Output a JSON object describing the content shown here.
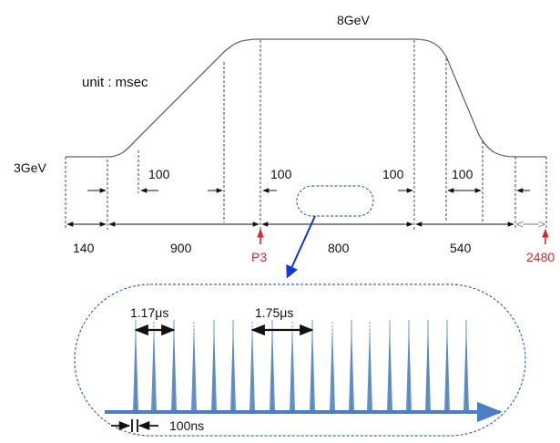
{
  "labels": {
    "energy_top": "8GeV",
    "energy_bottom": "3GeV",
    "unit": "unit : msec",
    "ramp_up": "100",
    "ramp_down": "100",
    "flat_start": "100",
    "flat_end": "100",
    "ramp_down_tail": "100",
    "seg1": "140",
    "seg2": "900",
    "seg3": "800",
    "seg4": "540",
    "marker_p3": "P3",
    "marker_end": "2480",
    "spacing1": "1.17μs",
    "spacing2": "1.75μs",
    "pulse_width": "100ns"
  },
  "colors": {
    "curve": "#666666",
    "red": "#d9262b",
    "blue": "#4a7fc1",
    "dotted": "#3e6db5",
    "arrow_blue": "#1336d6"
  },
  "pulses": [
    {
      "solid": true
    },
    {
      "solid": false
    },
    {
      "solid": true
    },
    {
      "solid": false
    },
    {
      "solid": true
    },
    {
      "solid": true
    },
    {
      "solid": false
    },
    {
      "solid": true
    },
    {
      "solid": false
    },
    {
      "solid": true
    },
    {
      "solid": false
    },
    {
      "solid": true
    },
    {
      "solid": false
    },
    {
      "solid": true
    },
    {
      "solid": true
    },
    {
      "solid": true
    },
    {
      "solid": true
    },
    {
      "solid": true
    },
    {
      "solid": true
    },
    {
      "solid": true
    }
  ]
}
